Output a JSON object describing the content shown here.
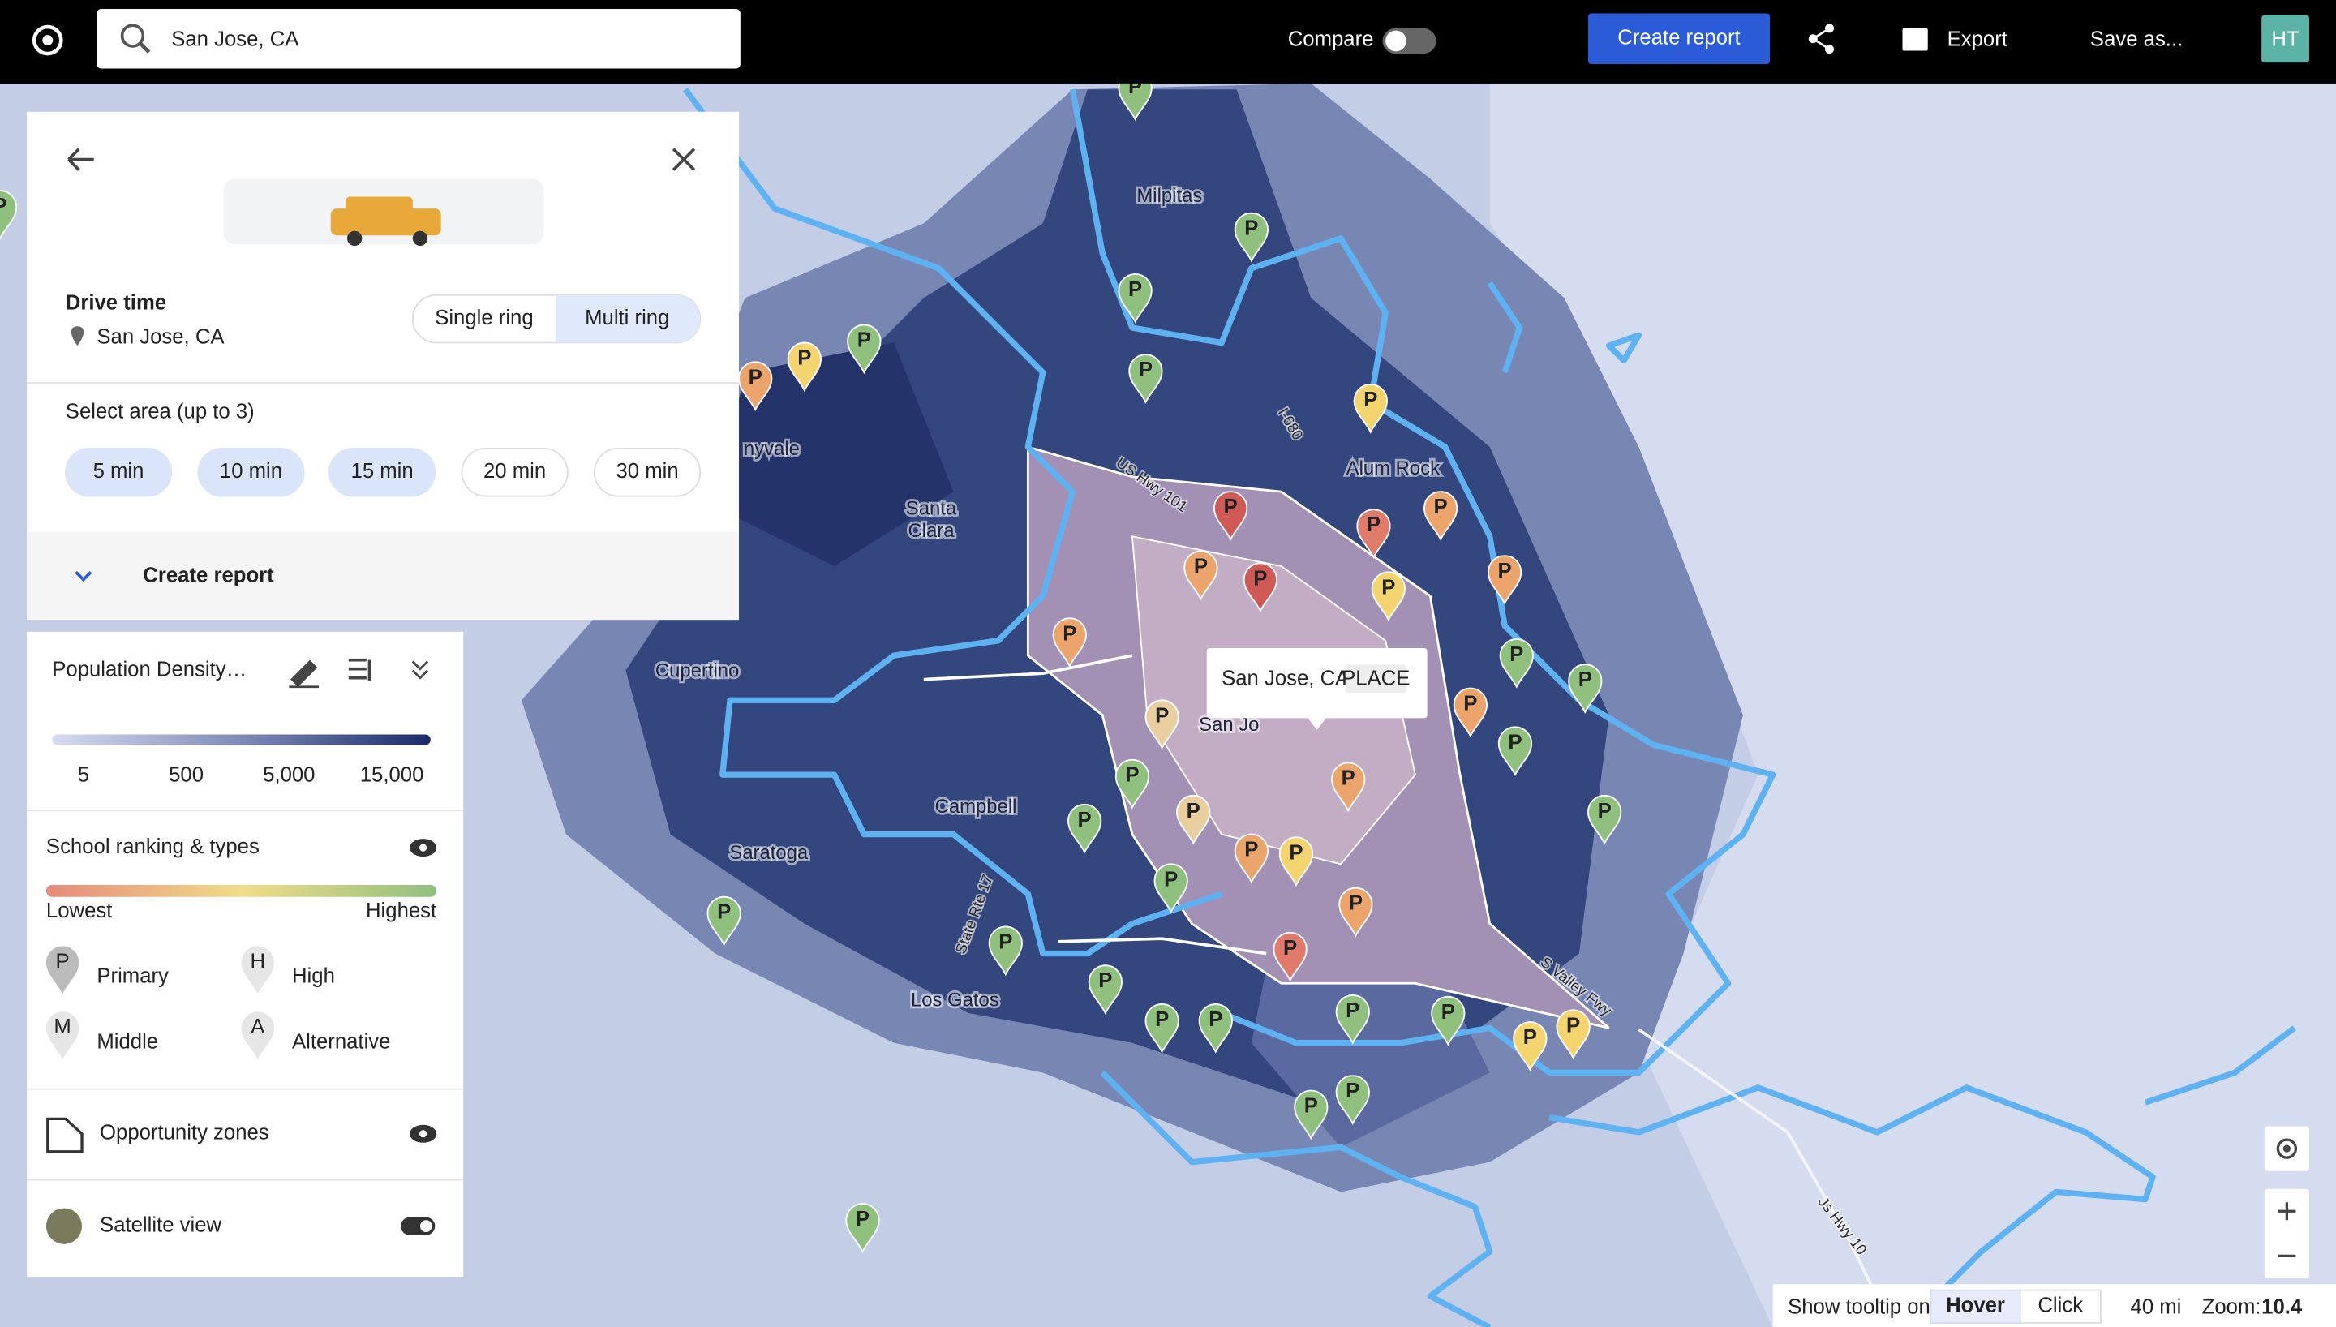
{
  "header": {
    "search": "San Jose, CA",
    "compare": "Compare",
    "create_report": "Create report",
    "export": "Export",
    "save_as": "Save as...",
    "avatar": "HT"
  },
  "drive_panel": {
    "title": "Drive time",
    "location": "San Jose, CA",
    "ring_options": [
      "Single ring",
      "Multi ring"
    ],
    "select_label": "Select area (up to 3)",
    "areas": [
      "5 min",
      "10 min",
      "15 min",
      "20 min",
      "30 min"
    ],
    "create_report": "Create report"
  },
  "legend": {
    "layer": "Population Density…",
    "density_ticks": [
      "5",
      "500",
      "5,000",
      "15,000"
    ],
    "school_title": "School ranking & types",
    "lowest": "Lowest",
    "highest": "Highest",
    "school_types": [
      {
        "letter": "P",
        "name": "Primary"
      },
      {
        "letter": "H",
        "name": "High"
      },
      {
        "letter": "M",
        "name": "Middle"
      },
      {
        "letter": "A",
        "name": "Alternative"
      }
    ],
    "opportunity_zones": "Opportunity zones",
    "satellite": "Satellite view"
  },
  "map": {
    "places": [
      "Milpitas",
      "Santa",
      "Clara",
      "Cupertino",
      "Campbell",
      "Saratoga",
      "Los Gatos",
      "nyvale",
      "Alum Rock",
      "San Jo"
    ],
    "roads": [
      "US Hwy 101",
      "I-680",
      "State Rte 17",
      "S Valley Fwy",
      "Js Hwy 10"
    ],
    "pin_label": "P"
  },
  "tooltip": {
    "name": "San Jose, CA",
    "tag": "PLACE"
  },
  "footer": {
    "tooltip_label": "Show tooltip on",
    "modes": [
      "Hover",
      "Click"
    ],
    "scale": "40 mi",
    "zoom_label": "Zoom:",
    "zoom": 10.4
  }
}
